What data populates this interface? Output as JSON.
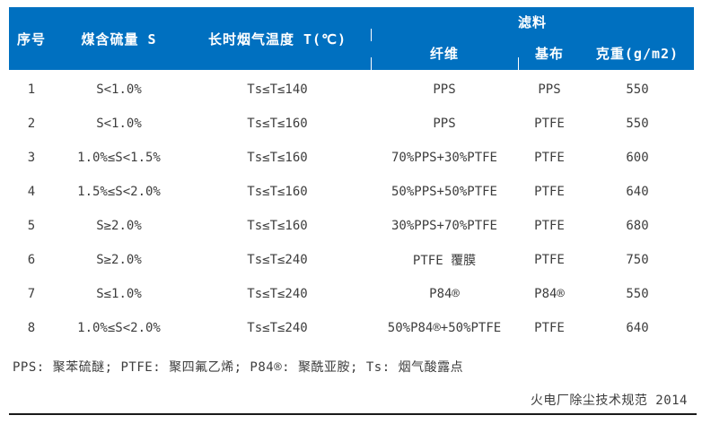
{
  "colors": {
    "header_bg": "#0070C0",
    "header_text": "#FFFFFF",
    "body_text": "#3D3D3D"
  },
  "table": {
    "headers": {
      "seq": "序号",
      "sulfur": "煤含硫量 S",
      "temp": "长时烟气温度 T(℃)",
      "filter_group": "滤料",
      "fiber": "纤维",
      "base": "基布",
      "weight": "克重(g/m2)"
    },
    "rows": [
      {
        "seq": "1",
        "sulfur": "S<1.0%",
        "temp": "Ts≤T≤140",
        "fiber": "PPS",
        "base": "PPS",
        "weight": "550"
      },
      {
        "seq": "2",
        "sulfur": "S<1.0%",
        "temp": "Ts≤T≤160",
        "fiber": "PPS",
        "base": "PTFE",
        "weight": "550"
      },
      {
        "seq": "3",
        "sulfur": "1.0%≤S<1.5%",
        "temp": "Ts≤T≤160",
        "fiber": "70%PPS+30%PTFE",
        "base": "PTFE",
        "weight": "600"
      },
      {
        "seq": "4",
        "sulfur": "1.5%≤S<2.0%",
        "temp": "Ts≤T≤160",
        "fiber": "50%PPS+50%PTFE",
        "base": "PTFE",
        "weight": "640"
      },
      {
        "seq": "5",
        "sulfur": "S≥2.0%",
        "temp": "Ts≤T≤160",
        "fiber": "30%PPS+70%PTFE",
        "base": "PTFE",
        "weight": "680"
      },
      {
        "seq": "6",
        "sulfur": "S≥2.0%",
        "temp": "Ts≤T≤240",
        "fiber": "PTFE 覆膜",
        "base": "PTFE",
        "weight": "750"
      },
      {
        "seq": "7",
        "sulfur": "S≤1.0%",
        "temp": "Ts≤T≤240",
        "fiber": "P84®",
        "base": "P84®",
        "weight": "550"
      },
      {
        "seq": "8",
        "sulfur": "1.0%≤S<2.0%",
        "temp": "Ts≤T≤240",
        "fiber": "50%P84®+50%PTFE",
        "base": "PTFE",
        "weight": "640"
      }
    ]
  },
  "footnote": "PPS: 聚苯硫醚; PTFE: 聚四氟乙烯; P84®: 聚酰亚胺; Ts: 烟气酸露点",
  "source": "火电厂除尘技术规范 2014"
}
